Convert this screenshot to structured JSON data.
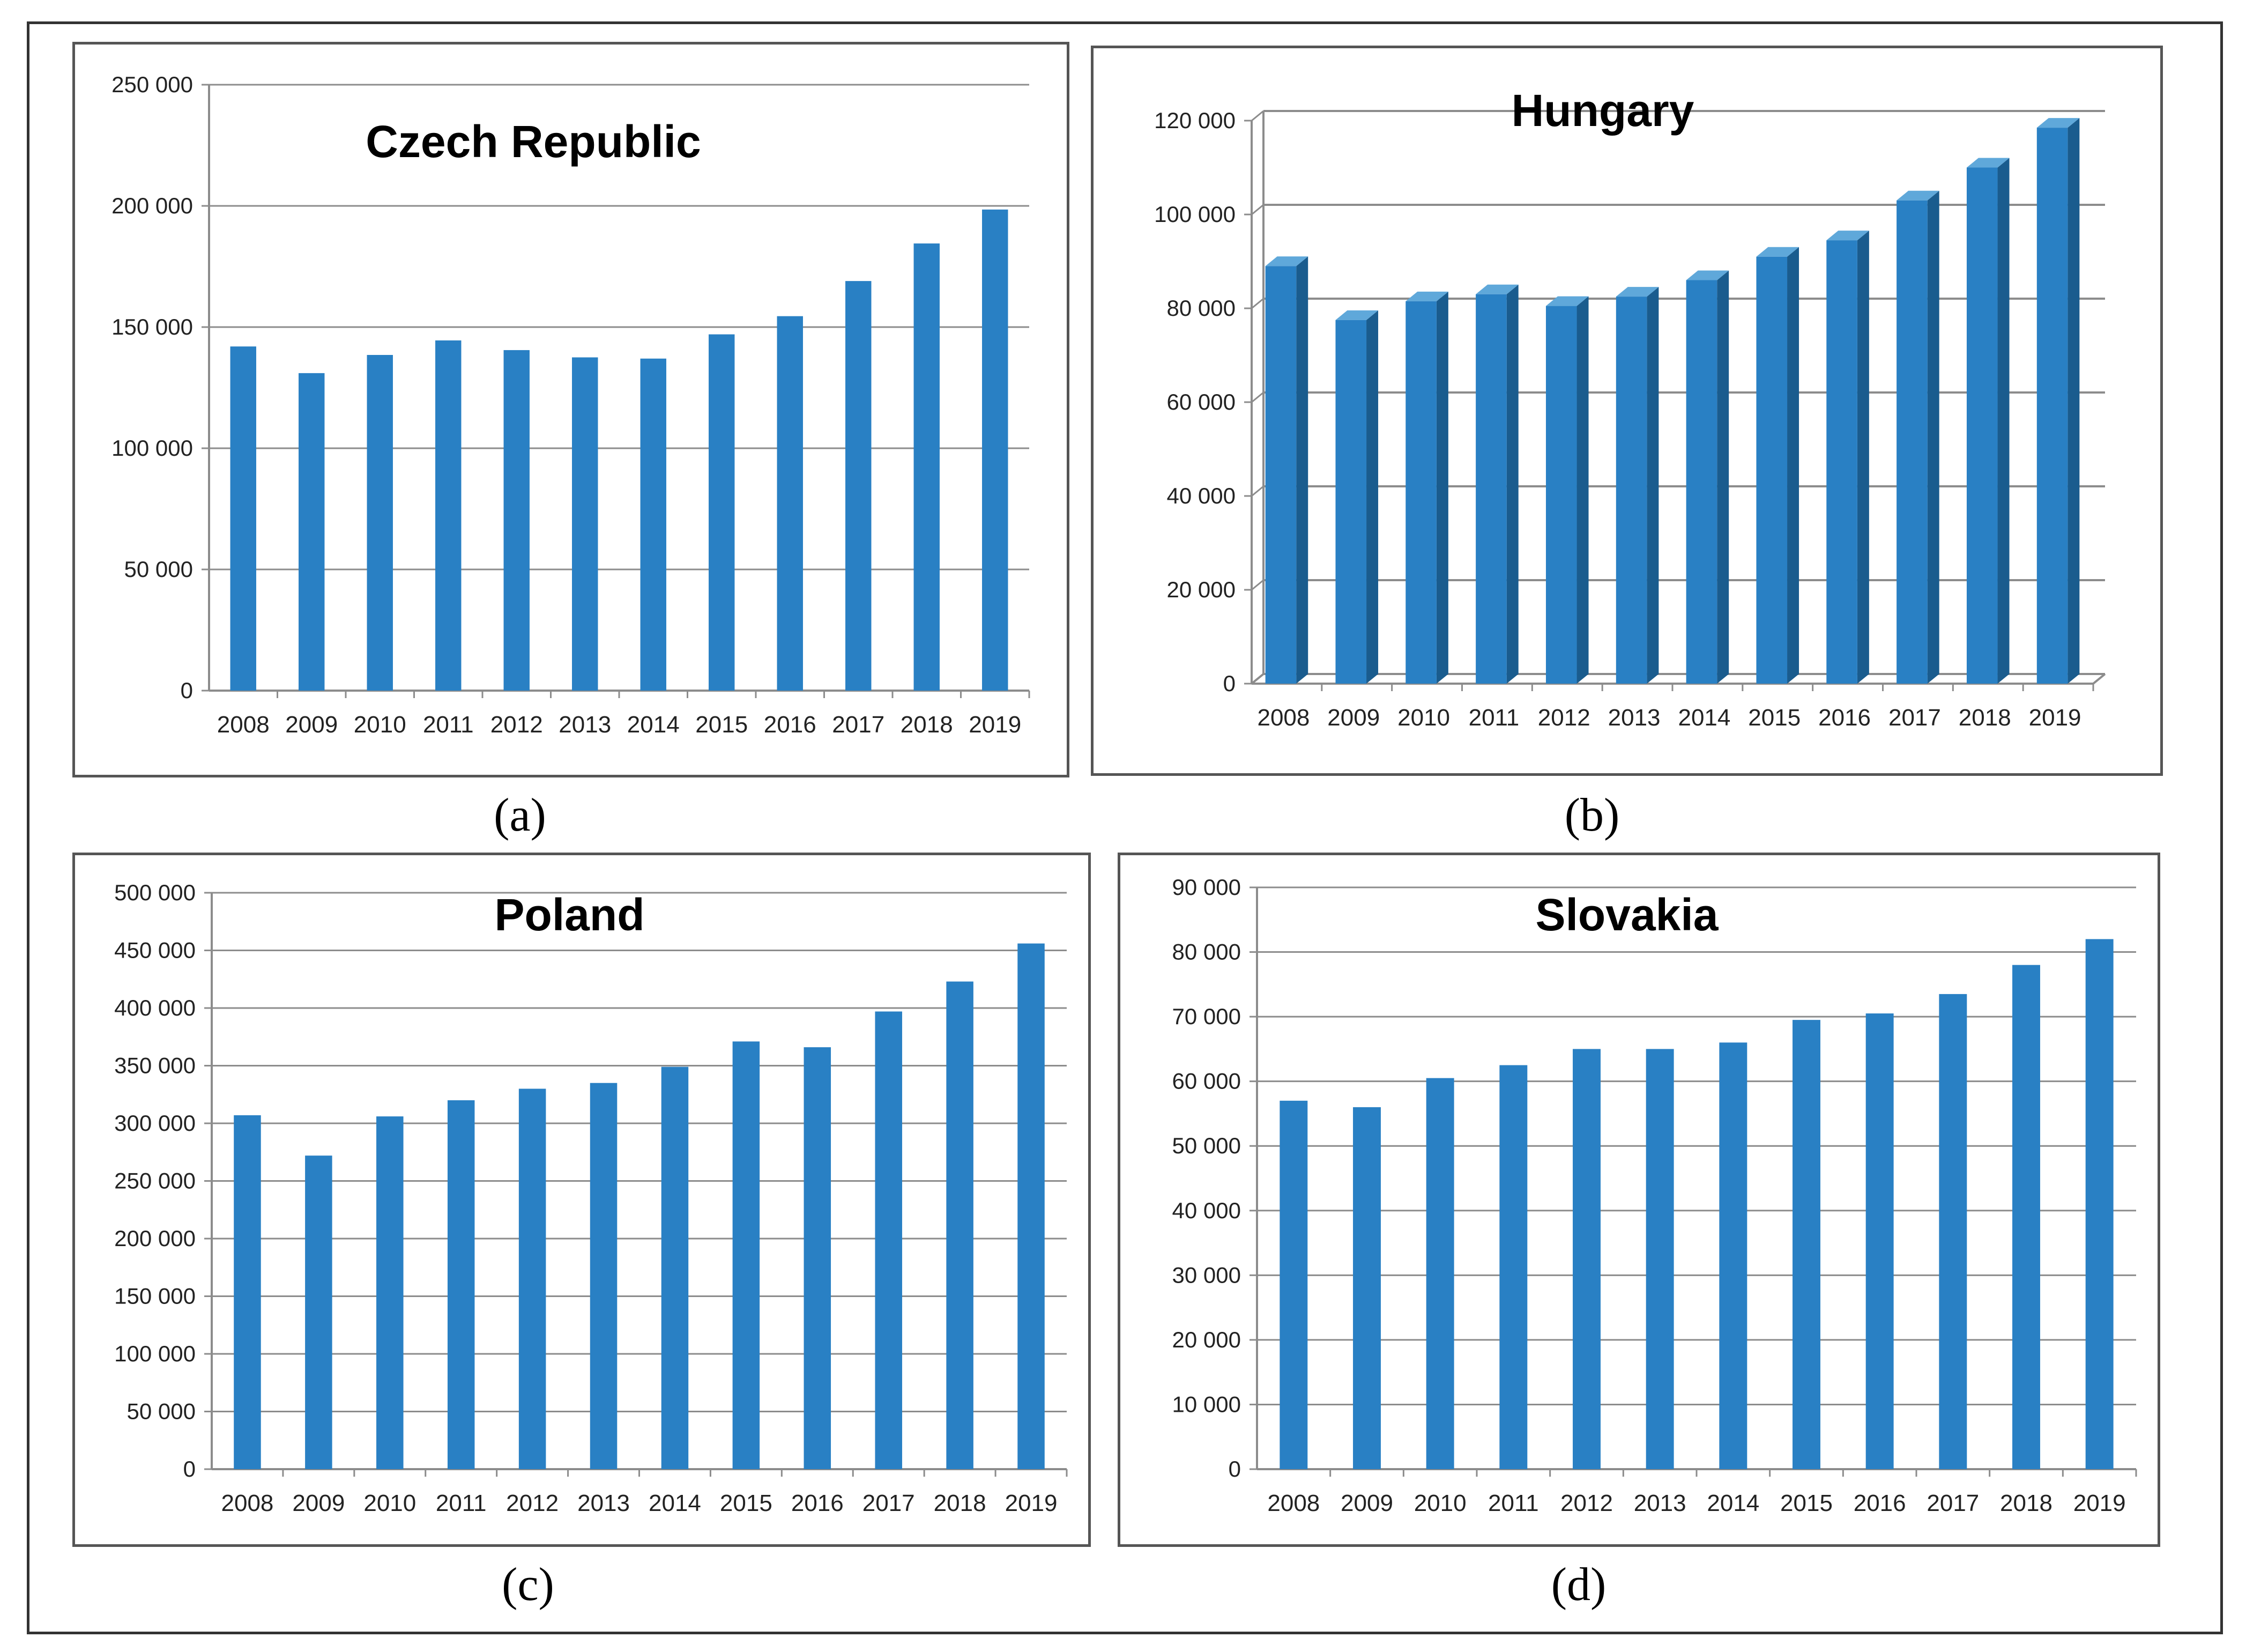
{
  "figure": {
    "bar_color": "#2980C4",
    "bar_side_color": "#1A5C8E",
    "bar_top_color": "#5FA8DA",
    "grid_color": "#8C8C8C",
    "axis_color": "#8C8C8C",
    "label_color": "#222222"
  },
  "chart_data": [
    {
      "type": "bar",
      "title": "Czech Republic",
      "caption": "(a)",
      "style": "flat",
      "categories": [
        "2008",
        "2009",
        "2010",
        "2011",
        "2012",
        "2013",
        "2014",
        "2015",
        "2016",
        "2017",
        "2018",
        "2019"
      ],
      "values": [
        142000,
        131000,
        138500,
        144500,
        140500,
        137500,
        137000,
        147000,
        154500,
        169000,
        184500,
        198500
      ],
      "ylim": [
        0,
        250000
      ],
      "yticks": [
        0,
        50000,
        100000,
        150000,
        200000,
        250000
      ],
      "ytick_labels": [
        "0",
        "50 000",
        "100 000",
        "150 000",
        "200 000",
        "250 000"
      ],
      "xlabel": "",
      "ylabel": "",
      "grid": true
    },
    {
      "type": "bar",
      "title": "Hungary",
      "caption": "(b)",
      "style": "3d",
      "categories": [
        "2008",
        "2009",
        "2010",
        "2011",
        "2012",
        "2013",
        "2014",
        "2015",
        "2016",
        "2017",
        "2018",
        "2019"
      ],
      "values": [
        89000,
        77500,
        81500,
        83000,
        80500,
        82500,
        86000,
        91000,
        94500,
        103000,
        110000,
        118500
      ],
      "ylim": [
        0,
        120000
      ],
      "yticks": [
        0,
        20000,
        40000,
        60000,
        80000,
        100000,
        120000
      ],
      "ytick_labels": [
        "0",
        "20 000",
        "40 000",
        "60 000",
        "80 000",
        "100 000",
        "120 000"
      ],
      "xlabel": "",
      "ylabel": "",
      "grid": true
    },
    {
      "type": "bar",
      "title": "Poland",
      "caption": "(c)",
      "style": "flat",
      "categories": [
        "2008",
        "2009",
        "2010",
        "2011",
        "2012",
        "2013",
        "2014",
        "2015",
        "2016",
        "2017",
        "2018",
        "2019"
      ],
      "values": [
        307000,
        272000,
        306000,
        320000,
        330000,
        335000,
        349000,
        371000,
        366000,
        397000,
        423000,
        456000
      ],
      "ylim": [
        0,
        500000
      ],
      "yticks": [
        0,
        50000,
        100000,
        150000,
        200000,
        250000,
        300000,
        350000,
        400000,
        450000,
        500000
      ],
      "ytick_labels": [
        "0",
        "50 000",
        "100 000",
        "150 000",
        "200 000",
        "250 000",
        "300 000",
        "350 000",
        "400 000",
        "450 000",
        "500 000"
      ],
      "xlabel": "",
      "ylabel": "",
      "grid": true
    },
    {
      "type": "bar",
      "title": "Slovakia",
      "caption": "(d)",
      "style": "flat",
      "categories": [
        "2008",
        "2009",
        "2010",
        "2011",
        "2012",
        "2013",
        "2014",
        "2015",
        "2016",
        "2017",
        "2018",
        "2019"
      ],
      "values": [
        57000,
        56000,
        60500,
        62500,
        65000,
        65000,
        66000,
        69500,
        70500,
        73500,
        78000,
        82000
      ],
      "ylim": [
        0,
        90000
      ],
      "yticks": [
        0,
        10000,
        20000,
        30000,
        40000,
        50000,
        60000,
        70000,
        80000,
        90000
      ],
      "ytick_labels": [
        "0",
        "10 000",
        "20 000",
        "30 000",
        "40 000",
        "50 000",
        "60 000",
        "70 000",
        "80 000",
        "90 000"
      ],
      "xlabel": "",
      "ylabel": "",
      "grid": true
    }
  ]
}
